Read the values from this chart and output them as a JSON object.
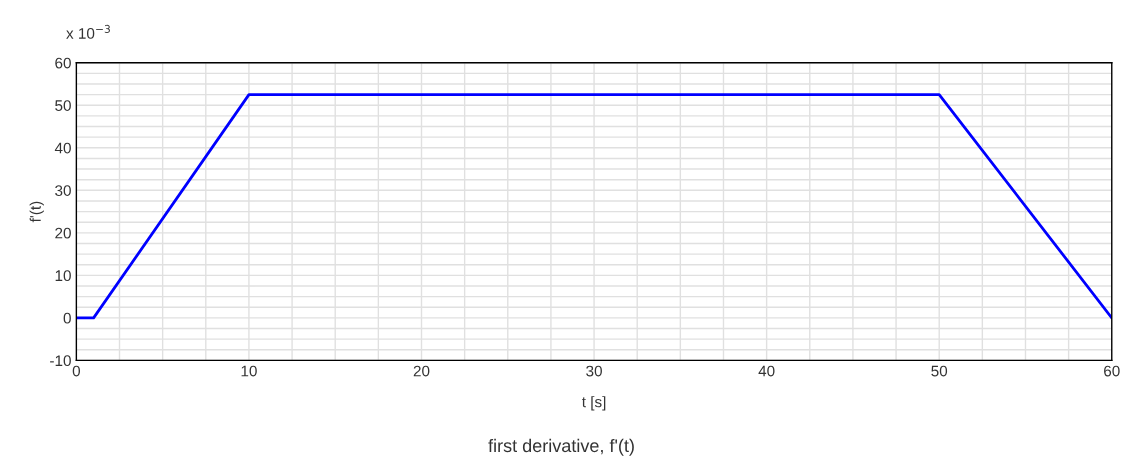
{
  "chart_data": {
    "type": "line",
    "title": "first derivative, f'(t)",
    "xlabel": "t [s]",
    "ylabel": "f'(t)",
    "annotations": [
      "x 10$^{−3}$"
    ],
    "x": [
      0,
      1,
      10,
      50,
      60
    ],
    "series": [
      {
        "color": "#0000ff",
        "values": [
          0,
          0,
          52.5,
          52.5,
          0
        ]
      }
    ],
    "xlim": [
      0,
      60
    ],
    "ylim": [
      -10,
      60
    ],
    "xticks": [
      0,
      {
        "value": 2.5,
        "label": null
      },
      {
        "value": 5,
        "label": null
      },
      {
        "value": 7.5,
        "label": null
      },
      10,
      {
        "value": 12.5,
        "label": null
      },
      {
        "value": 15,
        "label": null
      },
      {
        "value": 17.5,
        "label": null
      },
      20,
      {
        "value": 22.5,
        "label": null
      },
      {
        "value": 25,
        "label": null
      },
      {
        "value": 27.5,
        "label": null
      },
      30,
      {
        "value": 32.5,
        "label": null
      },
      {
        "value": 35,
        "label": null
      },
      {
        "value": 37.5,
        "label": null
      },
      40,
      {
        "value": 42.5,
        "label": null
      },
      {
        "value": 45,
        "label": null
      },
      {
        "value": 47.5,
        "label": null
      },
      50,
      {
        "value": 52.5,
        "label": null
      },
      {
        "value": 55,
        "label": null
      },
      {
        "value": 57.5,
        "label": null
      },
      60
    ],
    "yticks": [
      -10,
      {
        "value": -7.5,
        "label": null
      },
      {
        "value": -5,
        "label": null
      },
      {
        "value": -2.5,
        "label": null
      },
      0,
      {
        "value": 2.5,
        "label": null
      },
      {
        "value": 5,
        "label": null
      },
      {
        "value": 7.5,
        "label": null
      },
      10,
      {
        "value": 12.5,
        "label": null
      },
      {
        "value": 15,
        "label": null
      },
      {
        "value": 17.5,
        "label": null
      },
      20,
      {
        "value": 22.5,
        "label": null
      },
      {
        "value": 25,
        "label": null
      },
      {
        "value": 27.5,
        "label": null
      },
      30,
      {
        "value": 32.5,
        "label": null
      },
      {
        "value": 35,
        "label": null
      },
      {
        "value": 37.5,
        "label": null
      },
      40,
      {
        "value": 42.5,
        "label": null
      },
      {
        "value": 45,
        "label": null
      },
      {
        "value": 47.5,
        "label": null
      },
      50,
      {
        "value": 52.5,
        "label": null
      },
      {
        "value": 55,
        "label": null
      },
      {
        "value": 57.5,
        "label": null
      },
      60
    ],
    "grid": true,
    "marker": "none",
    "line_style": "solid"
  }
}
